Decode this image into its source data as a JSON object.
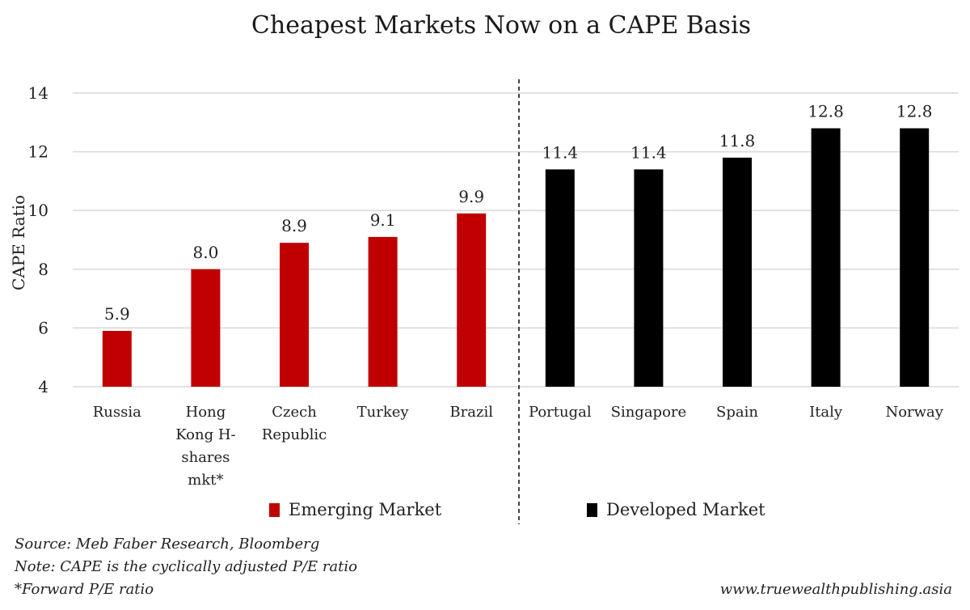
{
  "chart_data": {
    "type": "bar",
    "title": "Cheapest Markets Now on a CAPE Basis",
    "xlabel": "",
    "ylabel": "CAPE Ratio",
    "ylim": [
      4,
      14
    ],
    "yticks": [
      4,
      6,
      8,
      10,
      12,
      14
    ],
    "grid": true,
    "categories": [
      [
        "Russia"
      ],
      [
        "Hong",
        "Kong H-",
        "shares",
        "mkt*"
      ],
      [
        "Czech",
        "Republic"
      ],
      [
        "Turkey"
      ],
      [
        "Brazil"
      ],
      [
        "Portugal"
      ],
      [
        "Singapore"
      ],
      [
        "Spain"
      ],
      [
        "Italy"
      ],
      [
        "Norway"
      ]
    ],
    "values": [
      5.9,
      8.0,
      8.9,
      9.1,
      9.9,
      11.4,
      11.4,
      11.8,
      12.8,
      12.8
    ],
    "value_labels": [
      "5.9",
      "8.0",
      "8.9",
      "9.1",
      "9.9",
      "11.4",
      "11.4",
      "11.8",
      "12.8",
      "12.8"
    ],
    "groups": [
      "Emerging Market",
      "Emerging Market",
      "Emerging Market",
      "Emerging Market",
      "Emerging Market",
      "Developed Market",
      "Developed Market",
      "Developed Market",
      "Developed Market",
      "Developed Market"
    ],
    "legend": [
      {
        "name": "Emerging Market",
        "color": "#c00000"
      },
      {
        "name": "Developed Market",
        "color": "#000000"
      }
    ],
    "divider_after_index": 4
  },
  "footer": {
    "source": "Source: Meb Faber Research, Bloomberg",
    "note": "Note: CAPE is the cyclically adjusted P/E ratio",
    "footnote": "*Forward P/E ratio",
    "website": "www.truewealthpublishing.asia"
  }
}
